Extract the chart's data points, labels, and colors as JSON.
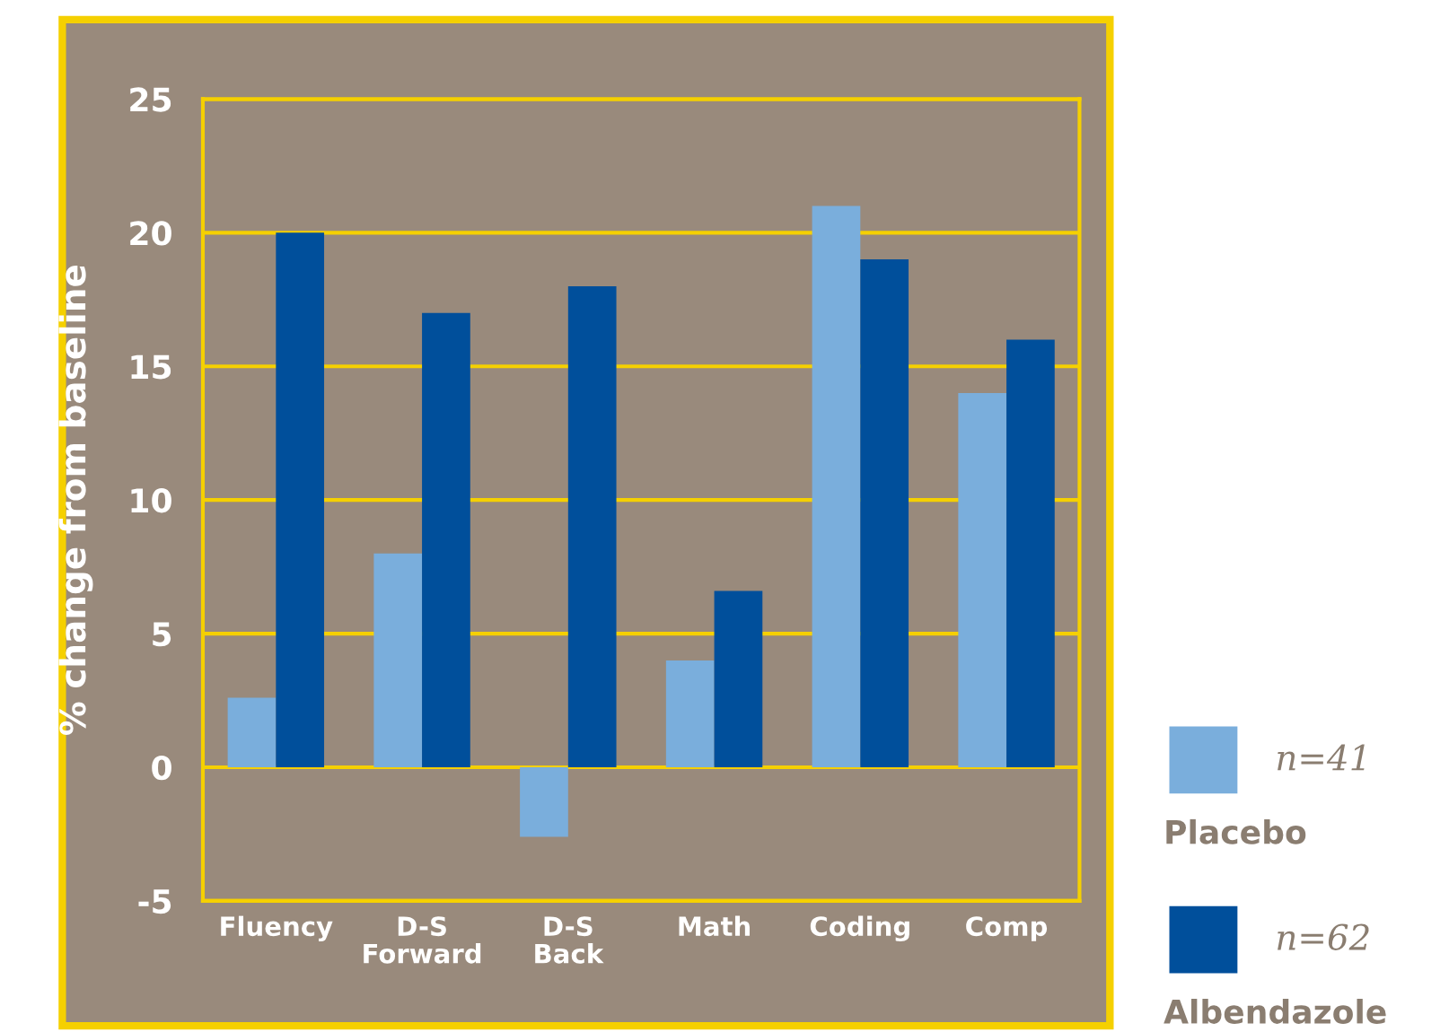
{
  "chart_data": {
    "type": "bar",
    "ylabel": "% change from baseline",
    "categories": [
      "Fluency",
      "D-S\nForward",
      "D-S\nBack",
      "Math",
      "Coding",
      "Comp"
    ],
    "series": [
      {
        "name": "Placebo",
        "color": "#7aaedc",
        "values": [
          2.6,
          8,
          -2.6,
          4,
          21,
          14
        ]
      },
      {
        "name": "Albendazole",
        "color": "#004f9b",
        "values": [
          20,
          17,
          18,
          6.6,
          19,
          16
        ]
      }
    ],
    "annotations": [
      "n=41",
      "n=62"
    ],
    "ylim": [
      -5,
      25
    ],
    "yticks": [
      -5,
      0,
      5,
      10,
      15,
      20,
      25
    ],
    "grid": "y",
    "legend": "right"
  }
}
